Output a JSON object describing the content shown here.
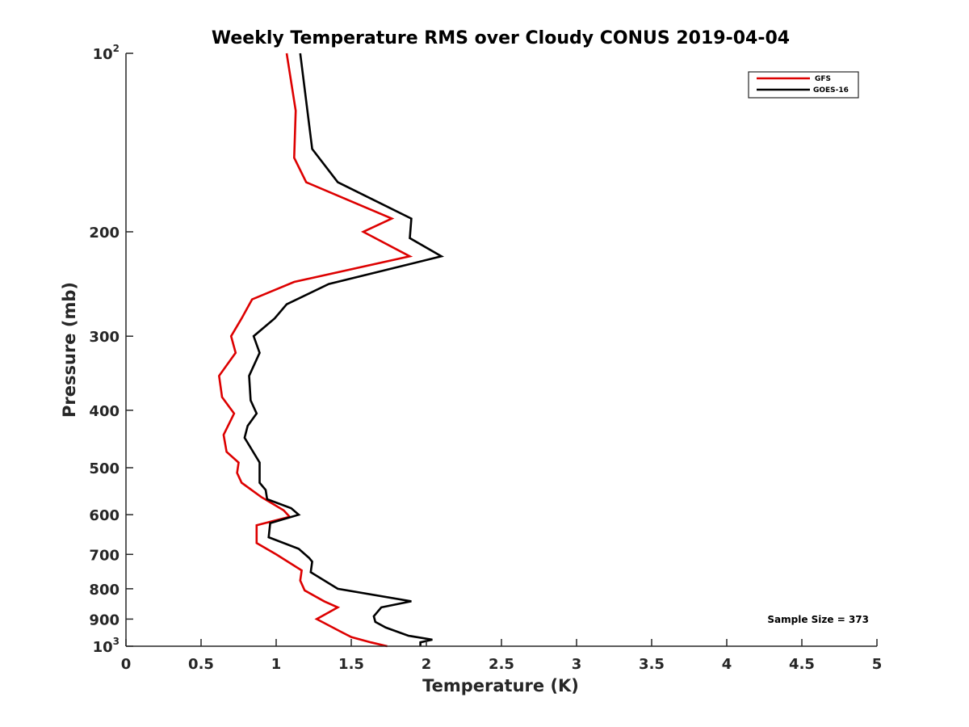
{
  "chart_data": {
    "type": "line",
    "title": "Weekly Temperature RMS over Cloudy CONUS 2019-04-04",
    "xlabel": "Temperature (K)",
    "ylabel": "Pressure (mb)",
    "xlim": [
      0,
      5
    ],
    "ylim": [
      100,
      1000
    ],
    "y_scale": "log",
    "y_reversed": true,
    "grid": false,
    "x_ticks": [
      0,
      0.5,
      1,
      1.5,
      2,
      2.5,
      3,
      3.5,
      4,
      4.5,
      5
    ],
    "x_tick_labels": [
      "0",
      "0.5",
      "1",
      "1.5",
      "2",
      "2.5",
      "3",
      "3.5",
      "4",
      "4.5",
      "5"
    ],
    "y_ticks": [
      {
        "value": 100,
        "base": "10",
        "sup": "2"
      },
      {
        "value": 200,
        "base": "200",
        "sup": ""
      },
      {
        "value": 300,
        "base": "300",
        "sup": ""
      },
      {
        "value": 400,
        "base": "400",
        "sup": ""
      },
      {
        "value": 500,
        "base": "500",
        "sup": ""
      },
      {
        "value": 600,
        "base": "600",
        "sup": ""
      },
      {
        "value": 700,
        "base": "700",
        "sup": ""
      },
      {
        "value": 800,
        "base": "800",
        "sup": ""
      },
      {
        "value": 900,
        "base": "900",
        "sup": ""
      },
      {
        "value": 1000,
        "base": "10",
        "sup": "3"
      }
    ],
    "legend_position": "top-right",
    "annotation": "Sample Size = 373",
    "series": [
      {
        "name": "GFS",
        "color": "#dd0000",
        "points": [
          [
            1.07,
            100
          ],
          [
            1.13,
            125
          ],
          [
            1.12,
            150
          ],
          [
            1.2,
            165
          ],
          [
            1.77,
            190
          ],
          [
            1.58,
            200
          ],
          [
            1.89,
            220
          ],
          [
            1.12,
            243
          ],
          [
            0.84,
            260
          ],
          [
            0.77,
            280
          ],
          [
            0.7,
            300
          ],
          [
            0.73,
            320
          ],
          [
            0.62,
            350
          ],
          [
            0.64,
            380
          ],
          [
            0.72,
            405
          ],
          [
            0.65,
            440
          ],
          [
            0.67,
            470
          ],
          [
            0.75,
            490
          ],
          [
            0.74,
            510
          ],
          [
            0.77,
            530
          ],
          [
            0.9,
            560
          ],
          [
            1.05,
            590
          ],
          [
            1.09,
            605
          ],
          [
            0.87,
            625
          ],
          [
            0.87,
            670
          ],
          [
            1.0,
            700
          ],
          [
            1.17,
            745
          ],
          [
            1.16,
            775
          ],
          [
            1.19,
            805
          ],
          [
            1.32,
            840
          ],
          [
            1.41,
            860
          ],
          [
            1.27,
            900
          ],
          [
            1.43,
            945
          ],
          [
            1.5,
            965
          ],
          [
            1.63,
            985
          ],
          [
            1.74,
            1000
          ]
        ]
      },
      {
        "name": "GOES-16",
        "color": "#000000",
        "points": [
          [
            1.16,
            100
          ],
          [
            1.24,
            145
          ],
          [
            1.41,
            165
          ],
          [
            1.9,
            190
          ],
          [
            1.89,
            205
          ],
          [
            2.1,
            220
          ],
          [
            1.35,
            245
          ],
          [
            1.07,
            265
          ],
          [
            0.99,
            280
          ],
          [
            0.85,
            300
          ],
          [
            0.89,
            320
          ],
          [
            0.82,
            350
          ],
          [
            0.83,
            385
          ],
          [
            0.87,
            405
          ],
          [
            0.81,
            425
          ],
          [
            0.79,
            445
          ],
          [
            0.89,
            490
          ],
          [
            0.89,
            530
          ],
          [
            0.93,
            545
          ],
          [
            0.94,
            565
          ],
          [
            1.1,
            585
          ],
          [
            1.15,
            600
          ],
          [
            0.96,
            620
          ],
          [
            0.95,
            655
          ],
          [
            1.15,
            685
          ],
          [
            1.22,
            710
          ],
          [
            1.24,
            720
          ],
          [
            1.23,
            750
          ],
          [
            1.41,
            800
          ],
          [
            1.9,
            840
          ],
          [
            1.7,
            860
          ],
          [
            1.65,
            890
          ],
          [
            1.66,
            910
          ],
          [
            1.73,
            930
          ],
          [
            1.88,
            960
          ],
          [
            2.04,
            975
          ],
          [
            1.96,
            985
          ],
          [
            1.96,
            1000
          ]
        ]
      }
    ]
  }
}
